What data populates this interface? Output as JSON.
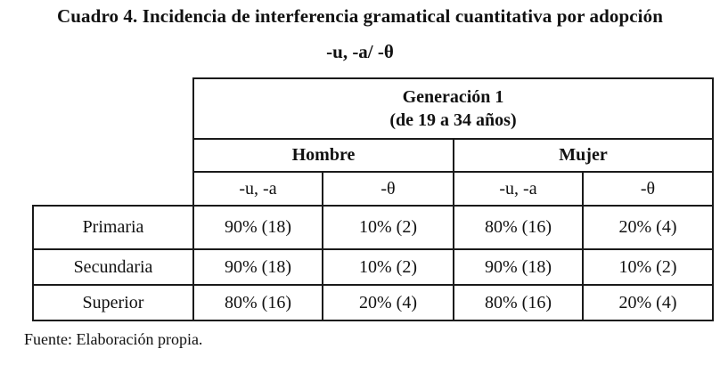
{
  "title": "Cuadro 4. Incidencia de interferencia gramatical cuantitativa por adopción",
  "subtitle": "-u, -a/ -θ",
  "table": {
    "generation_line1": "Generación 1",
    "generation_line2": "(de 19 a 34 años)",
    "groups": [
      "Hombre",
      "Mujer"
    ],
    "subheaders": [
      "-u, -a",
      "-θ",
      "-u, -a",
      "-θ"
    ],
    "rows": [
      {
        "label": "Primaria",
        "values": [
          "90% (18)",
          "10% (2)",
          "80% (16)",
          "20% (4)"
        ]
      },
      {
        "label": "Secundaria",
        "values": [
          "90% (18)",
          "10% (2)",
          "90% (18)",
          "10% (2)"
        ]
      },
      {
        "label": "Superior",
        "values": [
          "80% (16)",
          "20% (4)",
          "80% (16)",
          "20% (4)"
        ]
      }
    ]
  },
  "source": "Fuente: Elaboración propia."
}
